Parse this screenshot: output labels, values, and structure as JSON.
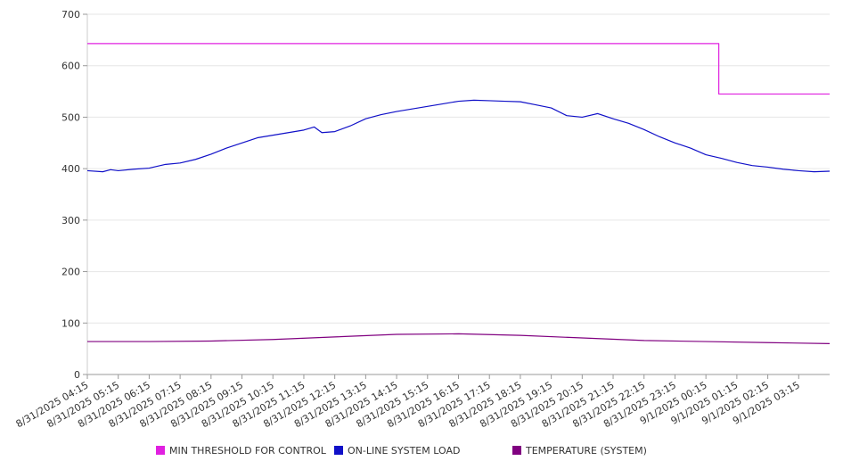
{
  "chart_data": {
    "type": "line",
    "title": "",
    "xlabel": "",
    "ylabel": "",
    "ylim": [
      0,
      700
    ],
    "y_ticks": [
      0,
      100,
      200,
      300,
      400,
      500,
      600,
      700
    ],
    "grid": true,
    "legend_position": "bottom",
    "categories": [
      "8/31/2025 04:15",
      "8/31/2025 05:15",
      "8/31/2025 06:15",
      "8/31/2025 07:15",
      "8/31/2025 08:15",
      "8/31/2025 09:15",
      "8/31/2025 10:15",
      "8/31/2025 11:15",
      "8/31/2025 12:15",
      "8/31/2025 13:15",
      "8/31/2025 14:15",
      "8/31/2025 15:15",
      "8/31/2025 16:15",
      "8/31/2025 17:15",
      "8/31/2025 18:15",
      "8/31/2025 19:15",
      "8/31/2025 20:15",
      "8/31/2025 21:15",
      "8/31/2025 22:15",
      "8/31/2025 23:15",
      "9/1/2025 00:15",
      "9/1/2025 01:15",
      "9/1/2025 02:15",
      "9/1/2025 03:15"
    ],
    "series": [
      {
        "name": "MIN THRESHOLD FOR CONTROL",
        "color": "#e020e0",
        "points": [
          [
            "8/31/2025 04:15",
            643
          ],
          [
            "9/1/2025 00:40",
            643
          ],
          [
            "9/1/2025 00:40",
            545
          ],
          [
            "9/1/2025 04:15",
            545
          ]
        ]
      },
      {
        "name": "ON-LINE SYSTEM LOAD",
        "color": "#1010c8",
        "points": [
          [
            "8/31/2025 04:15",
            396
          ],
          [
            "8/31/2025 04:45",
            394
          ],
          [
            "8/31/2025 05:00",
            398
          ],
          [
            "8/31/2025 05:15",
            396
          ],
          [
            "8/31/2025 05:45",
            399
          ],
          [
            "8/31/2025 06:15",
            401
          ],
          [
            "8/31/2025 06:45",
            408
          ],
          [
            "8/31/2025 07:15",
            411
          ],
          [
            "8/31/2025 07:45",
            418
          ],
          [
            "8/31/2025 08:15",
            428
          ],
          [
            "8/31/2025 08:45",
            440
          ],
          [
            "8/31/2025 09:15",
            450
          ],
          [
            "8/31/2025 09:45",
            460
          ],
          [
            "8/31/2025 10:15",
            465
          ],
          [
            "8/31/2025 10:45",
            470
          ],
          [
            "8/31/2025 11:15",
            475
          ],
          [
            "8/31/2025 11:35",
            481
          ],
          [
            "8/31/2025 11:50",
            470
          ],
          [
            "8/31/2025 12:15",
            472
          ],
          [
            "8/31/2025 12:45",
            483
          ],
          [
            "8/31/2025 13:15",
            497
          ],
          [
            "8/31/2025 13:45",
            505
          ],
          [
            "8/31/2025 14:15",
            511
          ],
          [
            "8/31/2025 14:45",
            516
          ],
          [
            "8/31/2025 15:15",
            521
          ],
          [
            "8/31/2025 15:45",
            526
          ],
          [
            "8/31/2025 16:15",
            531
          ],
          [
            "8/31/2025 16:45",
            533
          ],
          [
            "8/31/2025 17:15",
            532
          ],
          [
            "8/31/2025 17:45",
            531
          ],
          [
            "8/31/2025 18:15",
            530
          ],
          [
            "8/31/2025 18:45",
            524
          ],
          [
            "8/31/2025 19:15",
            518
          ],
          [
            "8/31/2025 19:45",
            503
          ],
          [
            "8/31/2025 20:15",
            500
          ],
          [
            "8/31/2025 20:45",
            507
          ],
          [
            "8/31/2025 21:15",
            497
          ],
          [
            "8/31/2025 21:45",
            488
          ],
          [
            "8/31/2025 22:15",
            476
          ],
          [
            "8/31/2025 22:45",
            462
          ],
          [
            "8/31/2025 23:15",
            450
          ],
          [
            "8/31/2025 23:45",
            440
          ],
          [
            "9/1/2025 00:15",
            427
          ],
          [
            "9/1/2025 00:45",
            420
          ],
          [
            "9/1/2025 01:15",
            412
          ],
          [
            "9/1/2025 01:45",
            406
          ],
          [
            "9/1/2025 02:15",
            403
          ],
          [
            "9/1/2025 02:45",
            399
          ],
          [
            "9/1/2025 03:15",
            396
          ],
          [
            "9/1/2025 03:45",
            394
          ],
          [
            "9/1/2025 04:15",
            395
          ]
        ]
      },
      {
        "name": "TEMPERATURE (SYSTEM)",
        "color": "#800080",
        "points": [
          [
            "8/31/2025 04:15",
            64
          ],
          [
            "8/31/2025 06:15",
            64
          ],
          [
            "8/31/2025 08:15",
            65
          ],
          [
            "8/31/2025 10:15",
            68
          ],
          [
            "8/31/2025 12:15",
            73
          ],
          [
            "8/31/2025 14:15",
            78
          ],
          [
            "8/31/2025 16:15",
            79
          ],
          [
            "8/31/2025 18:15",
            76
          ],
          [
            "8/31/2025 20:15",
            71
          ],
          [
            "8/31/2025 22:15",
            66
          ],
          [
            "9/1/2025 00:15",
            64
          ],
          [
            "9/1/2025 02:15",
            62
          ],
          [
            "9/1/2025 04:15",
            60
          ]
        ]
      }
    ]
  }
}
